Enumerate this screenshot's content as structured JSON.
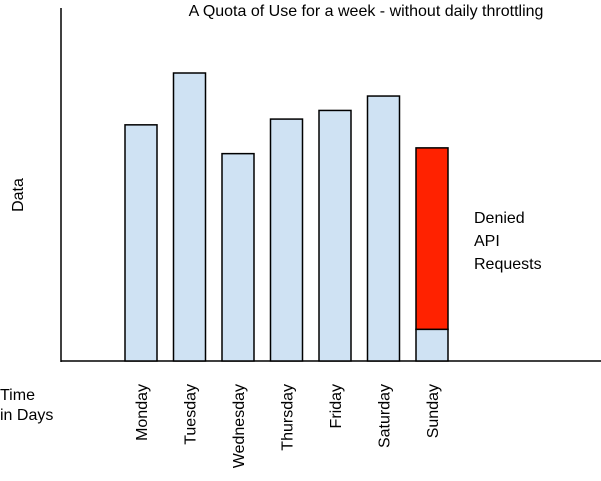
{
  "chart_data": {
    "type": "bar",
    "title": "A Quota of Use for a week - without daily throttling",
    "ylabel": "Data",
    "xlabel": "Time\nin Days",
    "grid": false,
    "ylim": [
      0,
      100
    ],
    "categories": [
      "Monday",
      "Tuesday",
      "Wednesday",
      "Thursday",
      "Friday",
      "Saturday",
      "Sunday"
    ],
    "series": [
      {
        "values": [
          82,
          100,
          72,
          84,
          87,
          92,
          11
        ],
        "color": "#cfe2f3"
      },
      {
        "values": [
          0,
          0,
          0,
          0,
          0,
          0,
          63
        ],
        "color": "#ff2200"
      }
    ],
    "annotation": "Denied\nAPI\nRequests"
  }
}
